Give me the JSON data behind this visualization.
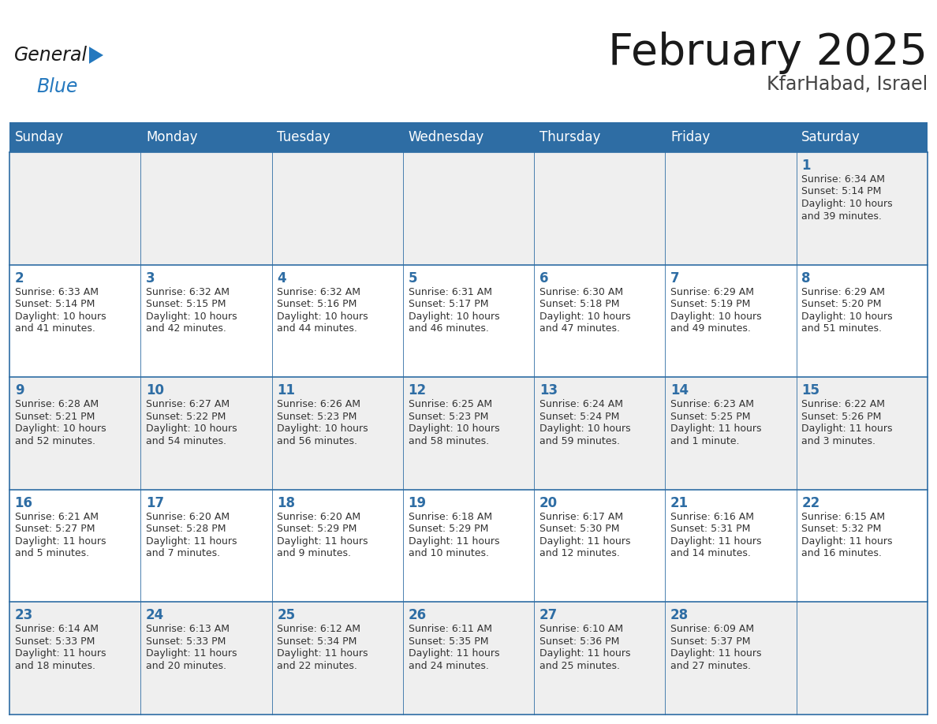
{
  "title": "February 2025",
  "subtitle": "KfarHabad, Israel",
  "header_bg": "#2E6DA4",
  "header_text": "#FFFFFF",
  "cell_bg_odd": "#EFEFEF",
  "cell_bg_even": "#FFFFFF",
  "border_color": "#2E6DA4",
  "day_names": [
    "Sunday",
    "Monday",
    "Tuesday",
    "Wednesday",
    "Thursday",
    "Friday",
    "Saturday"
  ],
  "title_color": "#1a1a1a",
  "subtitle_color": "#444444",
  "day_number_color": "#2E6DA4",
  "cell_text_color": "#333333",
  "logo_general_color": "#1a1a1a",
  "logo_blue_color": "#2478BE",
  "logo_triangle_color": "#2478BE",
  "calendar_data": [
    [
      null,
      null,
      null,
      null,
      null,
      null,
      {
        "day": 1,
        "sunrise": "6:34 AM",
        "sunset": "5:14 PM",
        "daylight_line1": "10 hours",
        "daylight_line2": "and 39 minutes."
      }
    ],
    [
      {
        "day": 2,
        "sunrise": "6:33 AM",
        "sunset": "5:14 PM",
        "daylight_line1": "10 hours",
        "daylight_line2": "and 41 minutes."
      },
      {
        "day": 3,
        "sunrise": "6:32 AM",
        "sunset": "5:15 PM",
        "daylight_line1": "10 hours",
        "daylight_line2": "and 42 minutes."
      },
      {
        "day": 4,
        "sunrise": "6:32 AM",
        "sunset": "5:16 PM",
        "daylight_line1": "10 hours",
        "daylight_line2": "and 44 minutes."
      },
      {
        "day": 5,
        "sunrise": "6:31 AM",
        "sunset": "5:17 PM",
        "daylight_line1": "10 hours",
        "daylight_line2": "and 46 minutes."
      },
      {
        "day": 6,
        "sunrise": "6:30 AM",
        "sunset": "5:18 PM",
        "daylight_line1": "10 hours",
        "daylight_line2": "and 47 minutes."
      },
      {
        "day": 7,
        "sunrise": "6:29 AM",
        "sunset": "5:19 PM",
        "daylight_line1": "10 hours",
        "daylight_line2": "and 49 minutes."
      },
      {
        "day": 8,
        "sunrise": "6:29 AM",
        "sunset": "5:20 PM",
        "daylight_line1": "10 hours",
        "daylight_line2": "and 51 minutes."
      }
    ],
    [
      {
        "day": 9,
        "sunrise": "6:28 AM",
        "sunset": "5:21 PM",
        "daylight_line1": "10 hours",
        "daylight_line2": "and 52 minutes."
      },
      {
        "day": 10,
        "sunrise": "6:27 AM",
        "sunset": "5:22 PM",
        "daylight_line1": "10 hours",
        "daylight_line2": "and 54 minutes."
      },
      {
        "day": 11,
        "sunrise": "6:26 AM",
        "sunset": "5:23 PM",
        "daylight_line1": "10 hours",
        "daylight_line2": "and 56 minutes."
      },
      {
        "day": 12,
        "sunrise": "6:25 AM",
        "sunset": "5:23 PM",
        "daylight_line1": "10 hours",
        "daylight_line2": "and 58 minutes."
      },
      {
        "day": 13,
        "sunrise": "6:24 AM",
        "sunset": "5:24 PM",
        "daylight_line1": "10 hours",
        "daylight_line2": "and 59 minutes."
      },
      {
        "day": 14,
        "sunrise": "6:23 AM",
        "sunset": "5:25 PM",
        "daylight_line1": "11 hours",
        "daylight_line2": "and 1 minute."
      },
      {
        "day": 15,
        "sunrise": "6:22 AM",
        "sunset": "5:26 PM",
        "daylight_line1": "11 hours",
        "daylight_line2": "and 3 minutes."
      }
    ],
    [
      {
        "day": 16,
        "sunrise": "6:21 AM",
        "sunset": "5:27 PM",
        "daylight_line1": "11 hours",
        "daylight_line2": "and 5 minutes."
      },
      {
        "day": 17,
        "sunrise": "6:20 AM",
        "sunset": "5:28 PM",
        "daylight_line1": "11 hours",
        "daylight_line2": "and 7 minutes."
      },
      {
        "day": 18,
        "sunrise": "6:20 AM",
        "sunset": "5:29 PM",
        "daylight_line1": "11 hours",
        "daylight_line2": "and 9 minutes."
      },
      {
        "day": 19,
        "sunrise": "6:18 AM",
        "sunset": "5:29 PM",
        "daylight_line1": "11 hours",
        "daylight_line2": "and 10 minutes."
      },
      {
        "day": 20,
        "sunrise": "6:17 AM",
        "sunset": "5:30 PM",
        "daylight_line1": "11 hours",
        "daylight_line2": "and 12 minutes."
      },
      {
        "day": 21,
        "sunrise": "6:16 AM",
        "sunset": "5:31 PM",
        "daylight_line1": "11 hours",
        "daylight_line2": "and 14 minutes."
      },
      {
        "day": 22,
        "sunrise": "6:15 AM",
        "sunset": "5:32 PM",
        "daylight_line1": "11 hours",
        "daylight_line2": "and 16 minutes."
      }
    ],
    [
      {
        "day": 23,
        "sunrise": "6:14 AM",
        "sunset": "5:33 PM",
        "daylight_line1": "11 hours",
        "daylight_line2": "and 18 minutes."
      },
      {
        "day": 24,
        "sunrise": "6:13 AM",
        "sunset": "5:33 PM",
        "daylight_line1": "11 hours",
        "daylight_line2": "and 20 minutes."
      },
      {
        "day": 25,
        "sunrise": "6:12 AM",
        "sunset": "5:34 PM",
        "daylight_line1": "11 hours",
        "daylight_line2": "and 22 minutes."
      },
      {
        "day": 26,
        "sunrise": "6:11 AM",
        "sunset": "5:35 PM",
        "daylight_line1": "11 hours",
        "daylight_line2": "and 24 minutes."
      },
      {
        "day": 27,
        "sunrise": "6:10 AM",
        "sunset": "5:36 PM",
        "daylight_line1": "11 hours",
        "daylight_line2": "and 25 minutes."
      },
      {
        "day": 28,
        "sunrise": "6:09 AM",
        "sunset": "5:37 PM",
        "daylight_line1": "11 hours",
        "daylight_line2": "and 27 minutes."
      },
      null
    ]
  ]
}
